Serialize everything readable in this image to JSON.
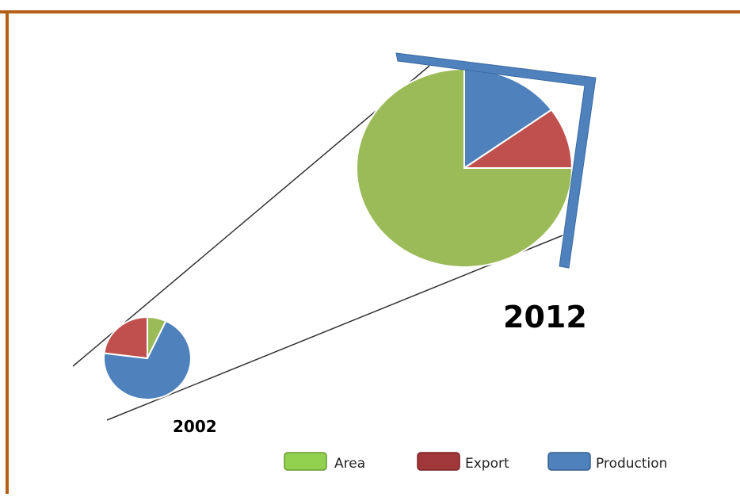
{
  "chart_data": [
    {
      "type": "pie",
      "year_label": "2002",
      "categories": [
        "Area",
        "Export",
        "Production"
      ],
      "values": [
        7,
        23,
        70
      ],
      "colors": [
        "#9bbb59",
        "#c0504d",
        "#4f81bd"
      ]
    },
    {
      "type": "pie",
      "year_label": "2012",
      "categories": [
        "Area",
        "Export",
        "Production"
      ],
      "values": [
        75,
        10,
        15
      ],
      "colors": [
        "#9bbb59",
        "#c0504d",
        "#4f81bd"
      ]
    }
  ],
  "legend": {
    "placement": "bottom",
    "items": [
      {
        "label": "Area",
        "color": "#9bbb59"
      },
      {
        "label": "Export",
        "color": "#c0504d"
      },
      {
        "label": "Production",
        "color": "#4f81bd"
      }
    ]
  },
  "colors": {
    "border": "#b35f17",
    "connector": "#333333",
    "bracket": "#4f81bd"
  }
}
